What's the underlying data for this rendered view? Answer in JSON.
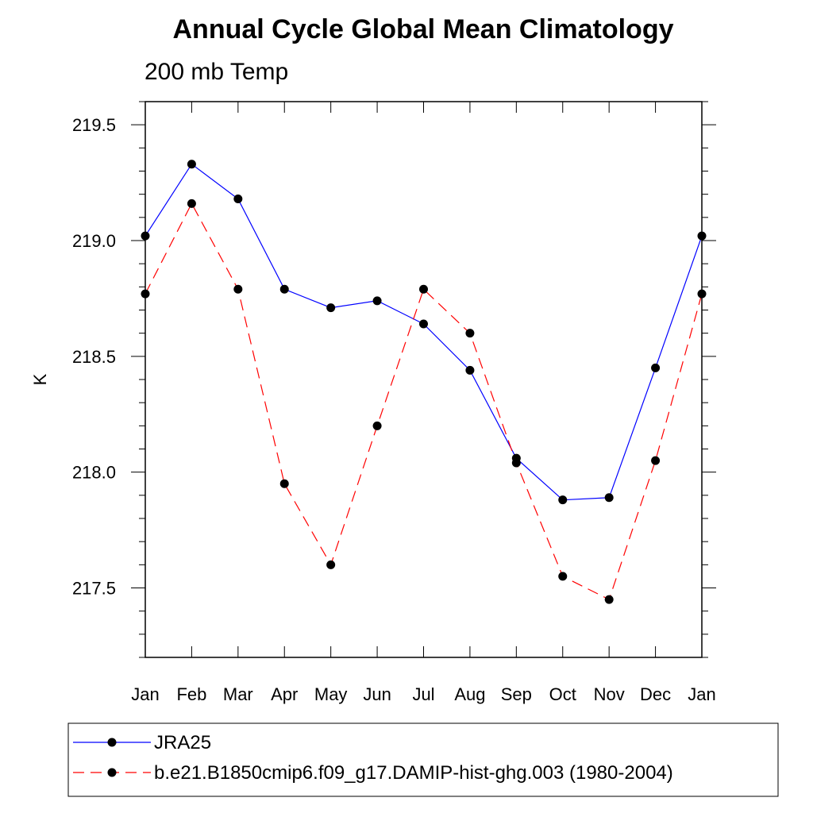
{
  "chart_data": {
    "type": "line",
    "title": "Annual Cycle Global Mean Climatology",
    "subtitle": "200 mb Temp",
    "xlabel": "",
    "ylabel": "K",
    "categories": [
      "Jan",
      "Feb",
      "Mar",
      "Apr",
      "May",
      "Jun",
      "Jul",
      "Aug",
      "Sep",
      "Oct",
      "Nov",
      "Dec",
      "Jan"
    ],
    "ylim": [
      217.2,
      219.6
    ],
    "yticks": [
      217.5,
      218.0,
      218.5,
      219.0,
      219.5
    ],
    "ytick_labels": [
      "217.5",
      "218.0",
      "218.5",
      "219.0",
      "219.5"
    ],
    "minor_step": 0.1,
    "series": [
      {
        "name": "JRA25",
        "color": "#0000ff",
        "dash": "solid",
        "values": [
          219.02,
          219.33,
          219.18,
          218.79,
          218.71,
          218.74,
          218.64,
          218.44,
          218.06,
          217.88,
          217.89,
          218.45,
          219.02
        ]
      },
      {
        "name": "b.e21.B1850cmip6.f09_g17.DAMIP-hist-ghg.003 (1980-2004)",
        "color": "#ff0000",
        "dash": "dashed",
        "values": [
          218.77,
          219.16,
          218.79,
          217.95,
          217.6,
          218.2,
          218.79,
          218.6,
          218.04,
          217.55,
          217.45,
          218.05,
          218.77
        ]
      }
    ],
    "legend_position": "bottom"
  }
}
